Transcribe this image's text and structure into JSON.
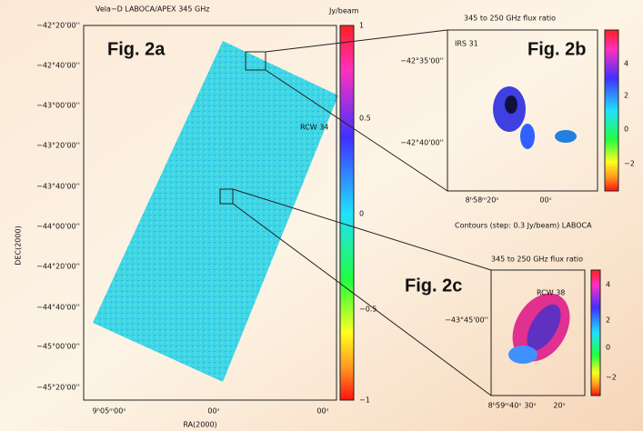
{
  "labels": {
    "fig_a": "Fig. 2a",
    "fig_b": "Fig. 2b",
    "fig_c": "Fig. 2c"
  },
  "panel_a": {
    "title": "Vela−D  LABOCA/APEX 345 GHz",
    "unit": "Jy/beam",
    "x_axis_label": "RA(2000)",
    "y_axis_label": "DEC(2000)",
    "yticks": [
      "−42°20'00''",
      "−42°40'00''",
      "−43°00'00''",
      "−43°20'00''",
      "−43°40'00''",
      "−44°00'00''",
      "−44°20'00''",
      "−44°40'00''",
      "−45°00'00''",
      "−45°20'00''"
    ],
    "xticks": [
      "9ʰ05ᵐ00ˢ",
      "00ˢ",
      "00ˢ"
    ],
    "colorbar_ticks": [
      "1",
      "0.5",
      "0",
      "−0.5",
      "−1"
    ],
    "annotation": "RCW 34"
  },
  "panel_b": {
    "title": "345 to 250 GHz flux ratio",
    "source": "IRS 31",
    "yticks": [
      "−42°35'00''",
      "−42°40'00''"
    ],
    "xticks": [
      "8ʰ58ᵐ20ˢ",
      "00ˢ"
    ],
    "colorbar_ticks": [
      "4",
      "2",
      "0",
      "−2"
    ]
  },
  "contour_note": "Contours (step: 0.3 Jy/beam) LABOCA",
  "panel_c": {
    "title": "345 to 250 GHz flux ratio",
    "source": "RCW 38",
    "yticks": [
      "−43°45'00''"
    ],
    "xticks": [
      "8ʰ59ᵐ40ˢ",
      "30ˢ",
      "20ˢ"
    ],
    "colorbar_ticks": [
      "4",
      "2",
      "0",
      "−2"
    ]
  }
}
